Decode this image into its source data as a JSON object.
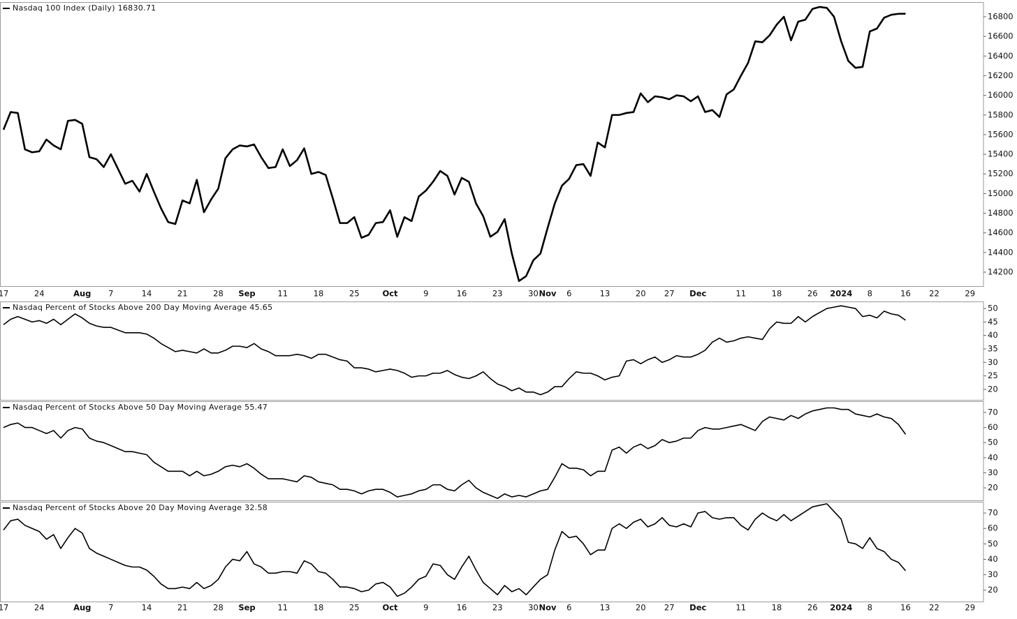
{
  "chart_data": [
    {
      "type": "line",
      "title": "Nasdaq 100 Index (Daily) 16830.71",
      "color": "#000000",
      "categories": [
        "17",
        null,
        null,
        null,
        null,
        "24",
        null,
        null,
        null,
        null,
        null,
        "Aug",
        null,
        null,
        null,
        "7",
        null,
        null,
        null,
        null,
        "14",
        null,
        null,
        null,
        null,
        "21",
        null,
        null,
        null,
        null,
        "28",
        null,
        null,
        null,
        "Sep",
        null,
        null,
        null,
        null,
        "11",
        null,
        null,
        null,
        null,
        "18",
        null,
        null,
        null,
        null,
        "25",
        null,
        null,
        null,
        null,
        "Oct",
        null,
        null,
        null,
        null,
        "9",
        null,
        null,
        null,
        null,
        "16",
        null,
        null,
        null,
        null,
        "23",
        null,
        null,
        null,
        null,
        "30",
        null,
        "Nov",
        null,
        null,
        "6",
        null,
        null,
        null,
        null,
        "13",
        null,
        null,
        null,
        null,
        "20",
        null,
        null,
        null,
        "27",
        null,
        null,
        null,
        "Dec",
        null,
        null,
        null,
        null,
        null,
        "11",
        null,
        null,
        null,
        null,
        "18",
        null,
        null,
        null,
        null,
        "26",
        null,
        null,
        null,
        "2024",
        null,
        null,
        null,
        "8",
        null,
        null,
        null,
        null,
        "16",
        null,
        null,
        null,
        "22",
        null,
        null,
        null,
        null,
        "29"
      ],
      "values": [
        15650,
        15830,
        15820,
        15450,
        15420,
        15430,
        15550,
        15490,
        15450,
        15740,
        15750,
        15710,
        15370,
        15350,
        15270,
        15400,
        15250,
        15100,
        15130,
        15020,
        15200,
        15020,
        14850,
        14710,
        14690,
        14930,
        14900,
        15140,
        14810,
        14940,
        15050,
        15360,
        15450,
        15490,
        15480,
        15500,
        15370,
        15260,
        15270,
        15450,
        15280,
        15340,
        15460,
        15200,
        15220,
        15190,
        14950,
        14700,
        14700,
        14760,
        14550,
        14580,
        14700,
        14710,
        14830,
        14560,
        14760,
        14720,
        14970,
        15030,
        15120,
        15230,
        15180,
        14990,
        15160,
        15120,
        14900,
        14770,
        14560,
        14610,
        14740,
        14390,
        14110,
        14160,
        14320,
        14390,
        14650,
        14900,
        15080,
        15150,
        15290,
        15300,
        15180,
        15520,
        15470,
        15800,
        15800,
        15820,
        15830,
        16020,
        15930,
        15990,
        15980,
        15960,
        16000,
        15990,
        15940,
        15990,
        15830,
        15850,
        15780,
        16010,
        16060,
        16200,
        16330,
        16550,
        16540,
        16610,
        16720,
        16800,
        16560,
        16750,
        16770,
        16880,
        16900,
        16890,
        16800,
        16550,
        16350,
        16280,
        16290,
        16650,
        16680,
        16790,
        16820,
        16830,
        16830.71,
        null,
        null,
        null,
        null,
        null,
        null,
        null,
        null,
        null
      ],
      "ylim": [
        14058,
        16949
      ],
      "yticks": [
        14200,
        14400,
        14600,
        14800,
        15000,
        15200,
        15400,
        15600,
        15800,
        16000,
        16200,
        16400,
        16600,
        16800
      ]
    },
    {
      "type": "line",
      "title": "Nasdaq Percent of Stocks Above 200 Day Moving Average 45.65",
      "color": "#000000",
      "values": [
        44,
        46,
        47,
        46,
        45,
        45.5,
        44.5,
        46,
        44,
        46,
        48,
        46.5,
        44.5,
        43.5,
        43,
        43,
        42,
        41,
        41,
        41,
        40.5,
        39,
        37,
        35.5,
        34,
        34.5,
        34,
        33.5,
        35,
        33.5,
        33.5,
        34.5,
        36,
        36,
        35.5,
        37,
        35,
        34,
        32.5,
        32.5,
        32.5,
        33,
        32.5,
        31.5,
        33,
        33,
        32,
        31,
        30.5,
        28,
        28,
        27.5,
        26.5,
        27,
        27.5,
        27,
        26,
        24.5,
        25,
        25,
        26,
        26,
        27,
        25.5,
        24.5,
        24,
        25,
        26.5,
        24,
        22,
        21,
        19.5,
        20.5,
        19,
        19,
        18,
        19,
        21,
        21,
        24,
        26.5,
        26,
        26,
        25,
        23.5,
        24.5,
        25,
        30.5,
        31,
        29.5,
        31,
        32,
        30,
        31,
        32.5,
        32,
        32,
        33,
        34.5,
        37.5,
        39,
        37.5,
        38,
        39,
        39.5,
        39,
        38.5,
        42.5,
        45,
        44.5,
        44.5,
        47,
        45,
        47,
        48.5,
        50,
        50.5,
        51,
        50.5,
        50,
        47,
        47.5,
        46.5,
        49,
        48,
        47.5,
        45.65,
        null,
        null,
        null,
        null,
        null,
        null,
        null,
        null,
        null
      ],
      "ylim": [
        16.1,
        52.6
      ],
      "yticks": [
        20,
        25,
        30,
        35,
        40,
        45,
        50
      ]
    },
    {
      "type": "line",
      "title": "Nasdaq Percent of Stocks Above 50 Day Moving Average 55.47",
      "color": "#000000",
      "values": [
        60,
        62,
        63,
        60,
        60,
        58,
        56,
        58,
        53,
        58,
        60,
        59,
        53,
        51,
        50,
        48,
        46,
        44,
        44,
        43,
        42,
        37,
        34,
        31,
        31,
        31,
        28,
        31,
        28,
        29,
        31,
        34,
        35,
        34,
        36,
        33,
        29,
        26,
        26,
        26,
        25,
        24,
        28,
        27,
        24,
        23,
        22,
        19,
        19,
        18,
        16,
        18,
        19,
        19,
        17,
        14,
        15,
        16,
        18,
        19,
        22,
        22,
        19,
        18,
        22,
        25,
        20,
        17,
        15,
        13,
        16,
        14,
        15,
        14,
        16,
        18,
        19,
        27,
        36,
        33,
        33,
        32,
        28,
        31,
        31,
        45,
        47,
        43,
        47,
        49,
        46,
        48,
        52,
        50,
        51,
        53,
        53,
        58,
        60,
        59,
        59,
        60,
        61,
        62,
        60,
        58,
        64,
        67,
        66,
        65,
        68,
        66,
        69,
        71,
        72,
        73,
        73,
        72,
        72,
        69,
        68,
        67,
        69,
        67,
        66,
        62,
        55.47,
        null,
        null,
        null,
        null,
        null,
        null,
        null,
        null,
        null
      ],
      "ylim": [
        11.7,
        77.4
      ],
      "yticks": [
        20,
        30,
        40,
        50,
        60,
        70
      ]
    },
    {
      "type": "line",
      "title": "Nasdaq Percent of Stocks Above 20 Day Moving Average 32.58",
      "color": "#000000",
      "values": [
        59,
        65,
        66,
        62,
        60,
        58,
        53,
        56,
        47,
        54,
        60,
        57,
        47,
        44,
        42,
        40,
        38,
        36,
        35,
        35,
        33,
        29,
        24,
        21,
        21,
        22,
        21,
        25,
        21,
        23,
        27,
        35,
        40,
        39,
        45,
        37,
        35,
        31,
        31,
        32,
        32,
        31,
        39,
        37,
        32,
        31,
        27,
        22,
        22,
        21,
        19,
        20,
        24,
        25,
        22,
        16,
        18,
        22,
        27,
        29,
        37,
        36,
        30,
        27,
        35,
        42,
        33,
        25,
        21,
        17,
        23,
        19,
        21,
        17,
        22,
        27,
        30,
        46,
        58,
        54,
        55,
        50,
        43,
        46,
        46,
        60,
        63,
        60,
        64,
        66,
        61,
        63,
        67,
        62,
        61,
        63,
        61,
        70,
        71,
        67,
        66,
        67,
        67,
        62,
        59,
        66,
        70,
        67,
        65,
        69,
        65,
        68,
        71,
        74,
        75,
        76,
        71,
        66,
        51,
        50,
        47,
        54,
        47,
        45,
        40,
        38,
        32.58,
        null,
        null,
        null,
        null,
        null,
        null,
        null,
        null,
        null
      ],
      "ylim": [
        12.6,
        77.3
      ],
      "yticks": [
        20,
        30,
        40,
        50,
        60,
        70
      ]
    }
  ]
}
